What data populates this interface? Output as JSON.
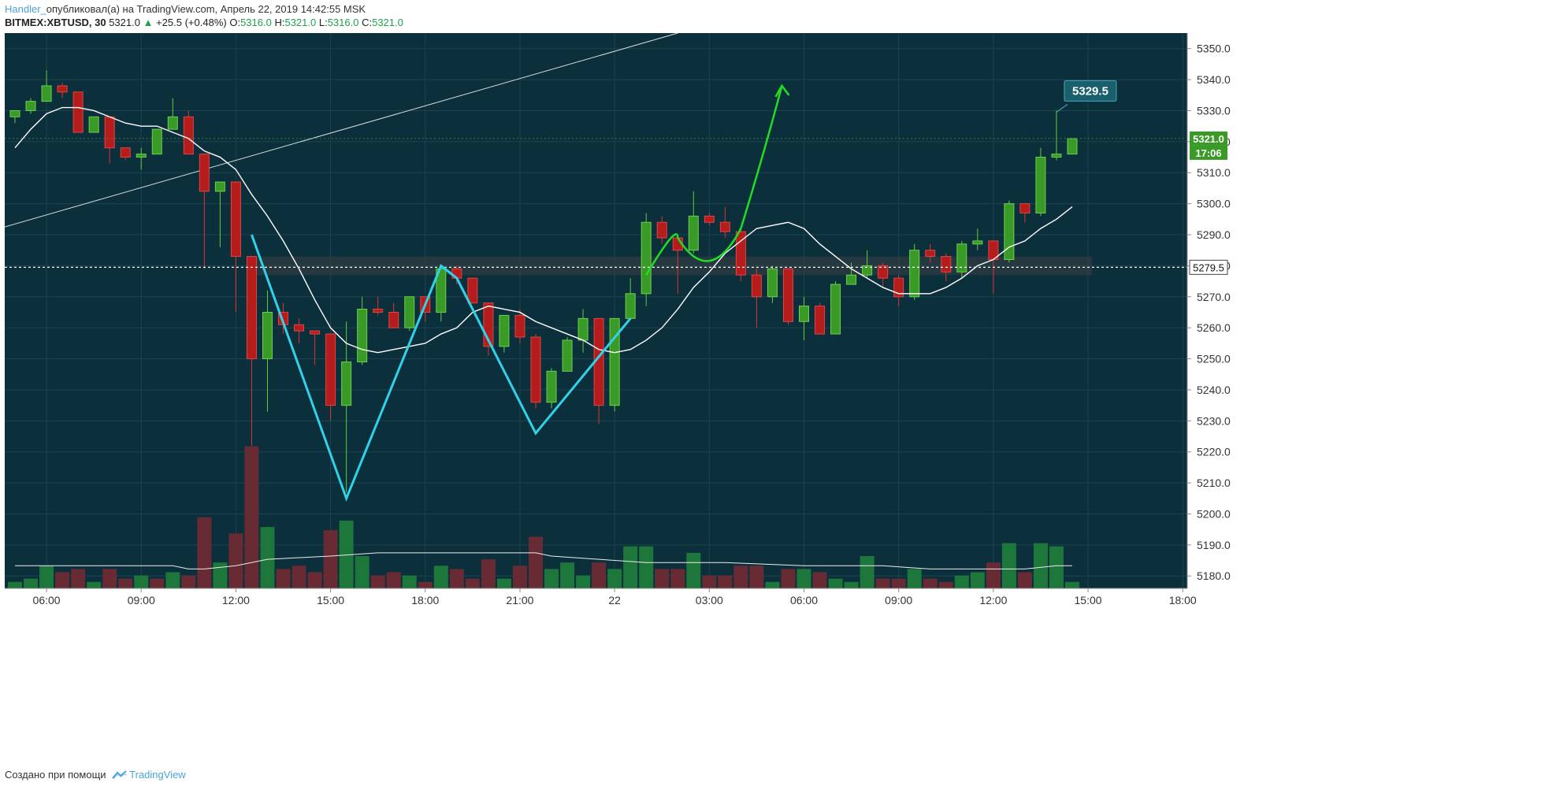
{
  "header": {
    "author": "Handler_",
    "published": "опубликовал(а) на TradingView.com, Апрель 22, 2019 14:42:55 MSK"
  },
  "info": {
    "symbol": "BITMEX:XBTUSD, 30",
    "price": "5321.0",
    "change_arrow": "▲",
    "change": "+25.5 (+0.48%)",
    "o_label": "O:",
    "o_value": "5316.0",
    "h_label": "H:",
    "h_value": "5321.0",
    "l_label": "L:",
    "l_value": "5316.0",
    "c_label": "C:",
    "c_value": "5321.0"
  },
  "footer": {
    "created": "Создано при помощи",
    "brand": "TradingView"
  },
  "colors": {
    "background": "#0c2f3c",
    "up": "#3a9a27",
    "down": "#b51d1d",
    "ma": "#ffffff",
    "pattern": "#2fd2e8",
    "arrow": "#22dd22"
  },
  "chart_data": {
    "type": "candlestick",
    "ylim": [
      5176,
      5355
    ],
    "y_ticks": [
      "5180.0",
      "5190.0",
      "5200.0",
      "5210.0",
      "5220.0",
      "5230.0",
      "5240.0",
      "5250.0",
      "5260.0",
      "5270.0",
      "5280.0",
      "5290.0",
      "5300.0",
      "5310.0",
      "5320.0",
      "5330.0",
      "5340.0",
      "5350.0"
    ],
    "x_ticks": [
      {
        "label": "06:00",
        "i": 2
      },
      {
        "label": "09:00",
        "i": 8
      },
      {
        "label": "12:00",
        "i": 14
      },
      {
        "label": "15:00",
        "i": 20
      },
      {
        "label": "18:00",
        "i": 26
      },
      {
        "label": "21:00",
        "i": 32
      },
      {
        "label": "22",
        "i": 38
      },
      {
        "label": "03:00",
        "i": 44
      },
      {
        "label": "06:00",
        "i": 50
      },
      {
        "label": "09:00",
        "i": 56
      },
      {
        "label": "12:00",
        "i": 62
      },
      {
        "label": "15:00",
        "i": 68
      },
      {
        "label": "18:00",
        "i": 74
      }
    ],
    "candles": [
      [
        5328,
        5330,
        5326,
        5330
      ],
      [
        5330,
        5334,
        5329,
        5333
      ],
      [
        5333,
        5343,
        5333,
        5338
      ],
      [
        5338,
        5339,
        5334,
        5336
      ],
      [
        5336,
        5336,
        5323,
        5323
      ],
      [
        5323,
        5328,
        5323,
        5328
      ],
      [
        5328,
        5328,
        5313,
        5318
      ],
      [
        5318,
        5318,
        5314,
        5315
      ],
      [
        5315,
        5318,
        5311,
        5316
      ],
      [
        5316,
        5324,
        5316,
        5324
      ],
      [
        5324,
        5334,
        5324,
        5328
      ],
      [
        5328,
        5330,
        5316,
        5316
      ],
      [
        5316,
        5316,
        5279,
        5304
      ],
      [
        5304,
        5307,
        5286,
        5307
      ],
      [
        5307,
        5307,
        5265,
        5283
      ],
      [
        5283,
        5283,
        5222,
        5250
      ],
      [
        5250,
        5272,
        5233,
        5265
      ],
      [
        5265,
        5268,
        5258,
        5261
      ],
      [
        5261,
        5263,
        5255,
        5259
      ],
      [
        5259,
        5259,
        5248,
        5258
      ],
      [
        5258,
        5258,
        5230,
        5235
      ],
      [
        5235,
        5262,
        5207,
        5249
      ],
      [
        5249,
        5270,
        5248,
        5266
      ],
      [
        5266,
        5270,
        5264,
        5265
      ],
      [
        5265,
        5268,
        5260,
        5260
      ],
      [
        5260,
        5270,
        5259,
        5270
      ],
      [
        5270,
        5270,
        5262,
        5265
      ],
      [
        5265,
        5280,
        5262,
        5279
      ],
      [
        5279,
        5280,
        5274,
        5276
      ],
      [
        5276,
        5276,
        5268,
        5268
      ],
      [
        5268,
        5268,
        5251,
        5254
      ],
      [
        5254,
        5264,
        5252,
        5264
      ],
      [
        5264,
        5266,
        5255,
        5257
      ],
      [
        5257,
        5258,
        5234,
        5236
      ],
      [
        5236,
        5247,
        5234,
        5246
      ],
      [
        5246,
        5257,
        5246,
        5256
      ],
      [
        5256,
        5266,
        5252,
        5263
      ],
      [
        5263,
        5263,
        5229,
        5235
      ],
      [
        5235,
        5263,
        5233,
        5263
      ],
      [
        5263,
        5276,
        5263,
        5271
      ],
      [
        5271,
        5297,
        5267,
        5294
      ],
      [
        5294,
        5296,
        5287,
        5289
      ],
      [
        5289,
        5290,
        5271,
        5285
      ],
      [
        5285,
        5304,
        5284,
        5296
      ],
      [
        5296,
        5297,
        5293,
        5294
      ],
      [
        5294,
        5299,
        5289,
        5291
      ],
      [
        5291,
        5292,
        5275,
        5277
      ],
      [
        5277,
        5279,
        5260,
        5270
      ],
      [
        5270,
        5280,
        5268,
        5279
      ],
      [
        5279,
        5279,
        5261,
        5262
      ],
      [
        5262,
        5270,
        5256,
        5267
      ],
      [
        5267,
        5268,
        5258,
        5258
      ],
      [
        5258,
        5275,
        5258,
        5274
      ],
      [
        5274,
        5281,
        5274,
        5277
      ],
      [
        5277,
        5285,
        5276,
        5280
      ],
      [
        5280,
        5281,
        5273,
        5276
      ],
      [
        5276,
        5277,
        5267,
        5270
      ],
      [
        5270,
        5287,
        5269,
        5285
      ],
      [
        5285,
        5287,
        5281,
        5283
      ],
      [
        5283,
        5284,
        5275,
        5278
      ],
      [
        5278,
        5288,
        5276,
        5287
      ],
      [
        5287,
        5292,
        5285,
        5288
      ],
      [
        5288,
        5288,
        5271,
        5282
      ],
      [
        5282,
        5301,
        5281,
        5300
      ],
      [
        5300,
        5300,
        5294,
        5297
      ],
      [
        5297,
        5318,
        5296,
        5315
      ],
      [
        5315,
        5330,
        5314,
        5316
      ],
      [
        5316,
        5321,
        5316,
        5321
      ]
    ],
    "volume_scale": [
      0,
      100
    ],
    "volumes": [
      [
        2,
        "up"
      ],
      [
        3,
        "up"
      ],
      [
        7,
        "up"
      ],
      [
        5,
        "down"
      ],
      [
        6,
        "down"
      ],
      [
        2,
        "up"
      ],
      [
        6,
        "down"
      ],
      [
        3,
        "down"
      ],
      [
        4,
        "up"
      ],
      [
        3,
        "down"
      ],
      [
        5,
        "up"
      ],
      [
        4,
        "down"
      ],
      [
        22,
        "down"
      ],
      [
        8,
        "up"
      ],
      [
        17,
        "down"
      ],
      [
        44,
        "down"
      ],
      [
        19,
        "up"
      ],
      [
        6,
        "down"
      ],
      [
        7,
        "down"
      ],
      [
        5,
        "down"
      ],
      [
        18,
        "down"
      ],
      [
        21,
        "up"
      ],
      [
        10,
        "up"
      ],
      [
        4,
        "down"
      ],
      [
        5,
        "down"
      ],
      [
        4,
        "up"
      ],
      [
        2,
        "down"
      ],
      [
        7,
        "up"
      ],
      [
        6,
        "down"
      ],
      [
        3,
        "down"
      ],
      [
        9,
        "down"
      ],
      [
        3,
        "up"
      ],
      [
        7,
        "down"
      ],
      [
        16,
        "down"
      ],
      [
        6,
        "up"
      ],
      [
        8,
        "up"
      ],
      [
        4,
        "up"
      ],
      [
        8,
        "down"
      ],
      [
        6,
        "up"
      ],
      [
        13,
        "up"
      ],
      [
        13,
        "up"
      ],
      [
        6,
        "down"
      ],
      [
        6,
        "down"
      ],
      [
        11,
        "up"
      ],
      [
        4,
        "down"
      ],
      [
        4,
        "down"
      ],
      [
        7,
        "down"
      ],
      [
        7,
        "down"
      ],
      [
        2,
        "up"
      ],
      [
        6,
        "down"
      ],
      [
        6,
        "up"
      ],
      [
        5,
        "down"
      ],
      [
        3,
        "up"
      ],
      [
        2,
        "up"
      ],
      [
        10,
        "up"
      ],
      [
        3,
        "down"
      ],
      [
        3,
        "down"
      ],
      [
        6,
        "up"
      ],
      [
        3,
        "down"
      ],
      [
        2,
        "down"
      ],
      [
        4,
        "up"
      ],
      [
        5,
        "up"
      ],
      [
        8,
        "down"
      ],
      [
        14,
        "up"
      ],
      [
        5,
        "down"
      ],
      [
        14,
        "up"
      ],
      [
        13,
        "up"
      ],
      [
        2,
        "up"
      ]
    ],
    "ma": [
      [
        0,
        5318
      ],
      [
        1,
        5324
      ],
      [
        2,
        5329
      ],
      [
        3,
        5331
      ],
      [
        4,
        5331
      ],
      [
        5,
        5330
      ],
      [
        6,
        5328
      ],
      [
        7,
        5326
      ],
      [
        8,
        5325
      ],
      [
        9,
        5325
      ],
      [
        10,
        5323
      ],
      [
        11,
        5321
      ],
      [
        12,
        5317
      ],
      [
        13,
        5315
      ],
      [
        14,
        5311
      ],
      [
        15,
        5303
      ],
      [
        16,
        5296
      ],
      [
        17,
        5288
      ],
      [
        18,
        5279
      ],
      [
        19,
        5269
      ],
      [
        20,
        5260
      ],
      [
        21,
        5255
      ],
      [
        22,
        5253
      ],
      [
        23,
        5252
      ],
      [
        24,
        5253
      ],
      [
        25,
        5254
      ],
      [
        26,
        5255
      ],
      [
        27,
        5258
      ],
      [
        28,
        5260
      ],
      [
        29,
        5265
      ],
      [
        30,
        5267
      ],
      [
        31,
        5266
      ],
      [
        32,
        5265
      ],
      [
        33,
        5262
      ],
      [
        34,
        5260
      ],
      [
        35,
        5258
      ],
      [
        36,
        5256
      ],
      [
        37,
        5253
      ],
      [
        38,
        5252
      ],
      [
        39,
        5253
      ],
      [
        40,
        5256
      ],
      [
        41,
        5260
      ],
      [
        42,
        5266
      ],
      [
        43,
        5273
      ],
      [
        44,
        5278
      ],
      [
        45,
        5284
      ],
      [
        46,
        5288
      ],
      [
        47,
        5292
      ],
      [
        48,
        5293
      ],
      [
        49,
        5294
      ],
      [
        50,
        5292
      ],
      [
        51,
        5287
      ],
      [
        52,
        5283
      ],
      [
        53,
        5279
      ],
      [
        54,
        5276
      ],
      [
        55,
        5273
      ],
      [
        56,
        5271
      ],
      [
        57,
        5271
      ],
      [
        58,
        5271
      ],
      [
        59,
        5273
      ],
      [
        60,
        5276
      ],
      [
        61,
        5280
      ],
      [
        62,
        5282
      ],
      [
        63,
        5286
      ],
      [
        64,
        5288
      ],
      [
        65,
        5292
      ],
      [
        66,
        5295
      ],
      [
        67,
        5299
      ]
    ],
    "volume_ma": [
      [
        0,
        7
      ],
      [
        10,
        7
      ],
      [
        11,
        6
      ],
      [
        12,
        6
      ],
      [
        14,
        7
      ],
      [
        16,
        9
      ],
      [
        20,
        10
      ],
      [
        23,
        11
      ],
      [
        30,
        11
      ],
      [
        33,
        11
      ],
      [
        34,
        10
      ],
      [
        37,
        9
      ],
      [
        40,
        8
      ],
      [
        45,
        8
      ],
      [
        50,
        7
      ],
      [
        55,
        7
      ],
      [
        58,
        6
      ],
      [
        60,
        6
      ],
      [
        64,
        6
      ],
      [
        66,
        7
      ],
      [
        67,
        7
      ]
    ],
    "support_level": 5279.5,
    "support_band": [
      5277,
      5283
    ],
    "trendline": [
      [
        -1,
        5292
      ],
      [
        42,
        5355
      ]
    ],
    "pattern_lines": [
      [
        [
          15,
          5290
        ],
        [
          21,
          5205
        ],
        [
          27,
          5280
        ],
        [
          28,
          5276
        ],
        [
          33,
          5226
        ],
        [
          39,
          5263
        ]
      ]
    ],
    "projection_arrow": [
      [
        40,
        5277
      ],
      [
        42,
        5289
      ],
      [
        44,
        5279
      ],
      [
        46,
        5292
      ],
      [
        48,
        5327
      ],
      [
        48.6,
        5338
      ]
    ],
    "callout": {
      "label": "5329.5",
      "price": 5329.5,
      "i": 66
    },
    "price_label": "5321.0",
    "countdown": "17:06",
    "line_label": "5279.5"
  }
}
